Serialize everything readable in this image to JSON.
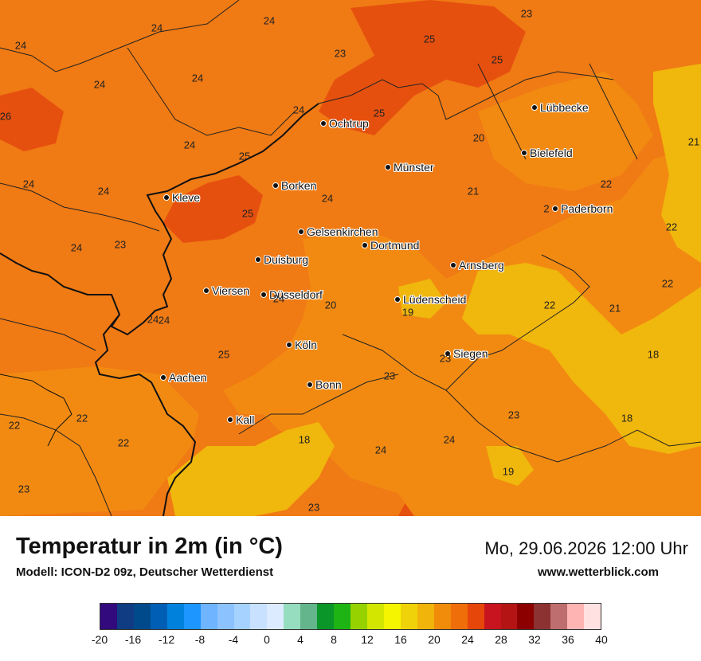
{
  "map": {
    "cities": [
      {
        "name": "Lübbecke"
      },
      {
        "name": "Ochtrup"
      },
      {
        "name": "Bielefeld"
      },
      {
        "name": "Münster"
      },
      {
        "name": "Borken"
      },
      {
        "name": "Kleve"
      },
      {
        "name": "Paderborn"
      },
      {
        "name": "Gelsenkirchen"
      },
      {
        "name": "Dortmund"
      },
      {
        "name": "Duisburg"
      },
      {
        "name": "Arnsberg"
      },
      {
        "name": "Viersen"
      },
      {
        "name": "Düsseldorf"
      },
      {
        "name": "Lüdenscheid"
      },
      {
        "name": "Köln"
      },
      {
        "name": "Siegen"
      },
      {
        "name": "Aachen"
      },
      {
        "name": "Bonn"
      },
      {
        "name": "Kall"
      }
    ],
    "values": [
      "24",
      "24",
      "24",
      "24",
      "23",
      "23",
      "25",
      "25",
      "24",
      "25",
      "24",
      "24",
      "24",
      "26",
      "25",
      "24",
      "20",
      "21",
      "24",
      "24",
      "21",
      "24",
      "25",
      "22",
      "2",
      "22",
      "24",
      "23",
      "22",
      "20",
      "24",
      "19",
      "22",
      "21",
      "25",
      "18",
      "23",
      "23",
      "23",
      "22",
      "22",
      "22",
      "18",
      "24",
      "18",
      "24",
      "23",
      "19",
      "23"
    ]
  },
  "footer": {
    "title": "Temperatur in 2m (in °C)",
    "subtitle": "Modell: ICON-D2 09z, Deutscher Wetterdienst",
    "datetime": "Mo, 29.06.2026 12:00 Uhr",
    "website": "www.wetterblick.com"
  },
  "colorscale": {
    "colors": [
      "#320a7d",
      "#0f3c82",
      "#004a8c",
      "#005fb4",
      "#0082dc",
      "#1e96ff",
      "#6eb4ff",
      "#8cc3ff",
      "#a6d2ff",
      "#c8e1ff",
      "#dcebff",
      "#96dcbe",
      "#64b48c",
      "#0a9628",
      "#1eb414",
      "#96d200",
      "#d2e600",
      "#f5f500",
      "#f0d20a",
      "#f0b40a",
      "#f08c0a",
      "#f06e0a",
      "#e6460a",
      "#c8141e",
      "#b41414",
      "#8c0000",
      "#8c3232",
      "#be6e6e",
      "#ffb4b4",
      "#ffe1e1"
    ],
    "ticks": [
      "-20",
      "-16",
      "-12",
      "-8",
      "-4",
      "0",
      "4",
      "8",
      "12",
      "16",
      "20",
      "24",
      "28",
      "32",
      "36",
      "40"
    ]
  }
}
